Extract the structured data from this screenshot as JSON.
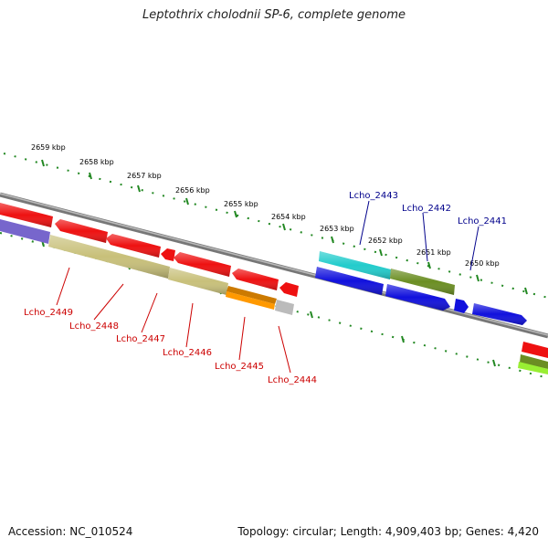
{
  "title": "Leptothrix cholodnii SP-6, complete genome",
  "footer": {
    "accession": "Accession: NC_010524",
    "stats": "Topology: circular; Length: 4,909,403 bp; Genes: 4,420"
  },
  "scale_labels": [
    "2659 kbp",
    "2658 kbp",
    "2657 kbp",
    "2656 kbp",
    "2655 kbp",
    "2654 kbp",
    "2653 kbp",
    "2652 kbp",
    "2651 kbp",
    "2650 kbp"
  ],
  "gene_labels_top": [
    "Lcho_2443",
    "Lcho_2442",
    "Lcho_2441"
  ],
  "gene_labels_bottom": [
    "Lcho_2449",
    "Lcho_2448",
    "Lcho_2447",
    "Lcho_2446",
    "Lcho_2445",
    "Lcho_2444"
  ],
  "colors": {
    "genome_line": "#888888",
    "scale_ticks": "#228822",
    "label_top": "#00008b",
    "label_bottom": "#cc0000",
    "gene_red": "#ee1111",
    "gene_blue": "#1111dd",
    "gene_cyan": "#22cccc",
    "gene_olive": "#6b8e23",
    "gene_khaki": "#c8c07a",
    "gene_orange": "#ff9900",
    "gene_slate": "#7766cc",
    "gene_gray": "#bbbbbb",
    "gene_lime": "#99ee33"
  }
}
